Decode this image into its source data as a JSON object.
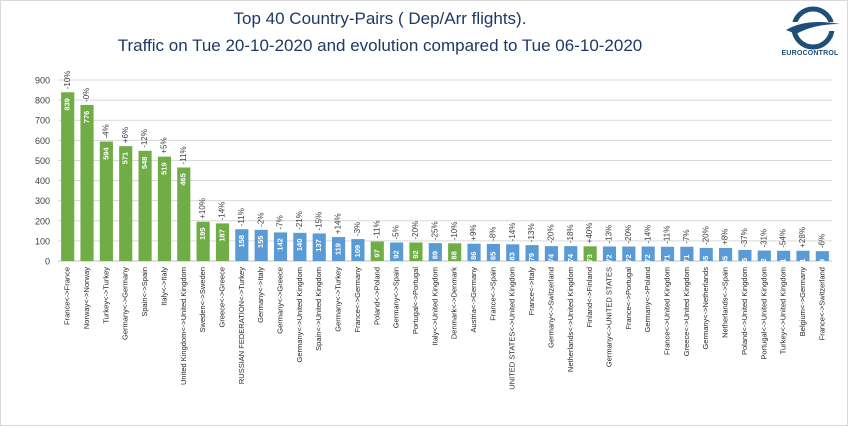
{
  "header": {
    "title_line1": "Top 40 Country-Pairs ( Dep/Arr flights).",
    "title_line2": "Traffic on Tue 20-10-2020 and evolution compared to Tue 06-10-2020",
    "logo_text": "EUROCONTROL"
  },
  "colors": {
    "green": "#70ad47",
    "blue": "#5b9bd5",
    "title": "#1f3864",
    "logo": "#1f4e79"
  },
  "chart_data": {
    "type": "bar",
    "title": "Top 40 Country-Pairs ( Dep/Arr flights). Traffic on Tue 20-10-2020 and evolution compared to Tue 06-10-2020",
    "ylim": [
      0,
      900
    ],
    "yticks": [
      0,
      100,
      200,
      300,
      400,
      500,
      600,
      700,
      800,
      900
    ],
    "grid": true,
    "categories": [
      "France<->France",
      "Norway<->Norway",
      "Turkey<->Turkey",
      "Germany<->Germany",
      "Spain<->Spain",
      "Italy<->Italy",
      "United Kingdom<->United Kingdom",
      "Sweden<->Sweden",
      "Greece<->Greece",
      "RUSSIAN FEDERATION<->Turkey",
      "Germany<->Italy",
      "Germany<->Greece",
      "Germany<->United Kingdom",
      "Spain<->United Kingdom",
      "Germany<->Turkey",
      "France<->Germany",
      "Poland<->Poland",
      "Germany<->Spain",
      "Portugal<->Portugal",
      "Italy<->United Kingdom",
      "Denmark<->Denmark",
      "Austria<->Germany",
      "France<->Spain",
      "UNITED STATES<->United Kingdom",
      "France<->Italy",
      "Germany<->Switzerland",
      "Netherlands<->United Kingdom",
      "Finland<->Finland",
      "Germany<->UNITED STATES",
      "France<->Portugal",
      "Germany<->Poland",
      "France<->United Kingdom",
      "Greece<->United Kingdom",
      "Germany<->Netherlands",
      "Netherlands<->Spain",
      "Poland<->United Kingdom",
      "Portugal<->United Kingdom",
      "Turkey<->United Kingdom",
      "Belgium<->Germany",
      "France<->Switzerland"
    ],
    "values": [
      839,
      776,
      594,
      571,
      548,
      519,
      465,
      195,
      187,
      158,
      155,
      142,
      140,
      137,
      119,
      109,
      97,
      92,
      92,
      89,
      88,
      86,
      85,
      83,
      79,
      74,
      74,
      73,
      72,
      72,
      72,
      71,
      71,
      65,
      65,
      55,
      52,
      51,
      51,
      49
    ],
    "evolution": [
      "-10%",
      "-0%",
      "-4%",
      "+6%",
      "-12%",
      "+5%",
      "-11%",
      "+10%",
      "-14%",
      "-11%",
      "-2%",
      "-7%",
      "-21%",
      "-15%",
      "+14%",
      "-3%",
      "-11%",
      "-5%",
      "-20%",
      "-25%",
      "-10%",
      "+9%",
      "-8%",
      "-14%",
      "-13%",
      "-20%",
      "-18%",
      "+40%",
      "-13%",
      "-20%",
      "-14%",
      "-11%",
      "-7%",
      "-20%",
      "+8%",
      "-37%",
      "-31%",
      "-54%",
      "+28%",
      "-6%"
    ],
    "bar_colors": [
      "green",
      "green",
      "green",
      "green",
      "green",
      "green",
      "green",
      "green",
      "green",
      "blue",
      "blue",
      "blue",
      "blue",
      "blue",
      "blue",
      "blue",
      "green",
      "blue",
      "green",
      "blue",
      "green",
      "blue",
      "blue",
      "blue",
      "blue",
      "blue",
      "blue",
      "green",
      "blue",
      "blue",
      "blue",
      "blue",
      "blue",
      "blue",
      "blue",
      "blue",
      "blue",
      "blue",
      "blue",
      "blue"
    ]
  }
}
